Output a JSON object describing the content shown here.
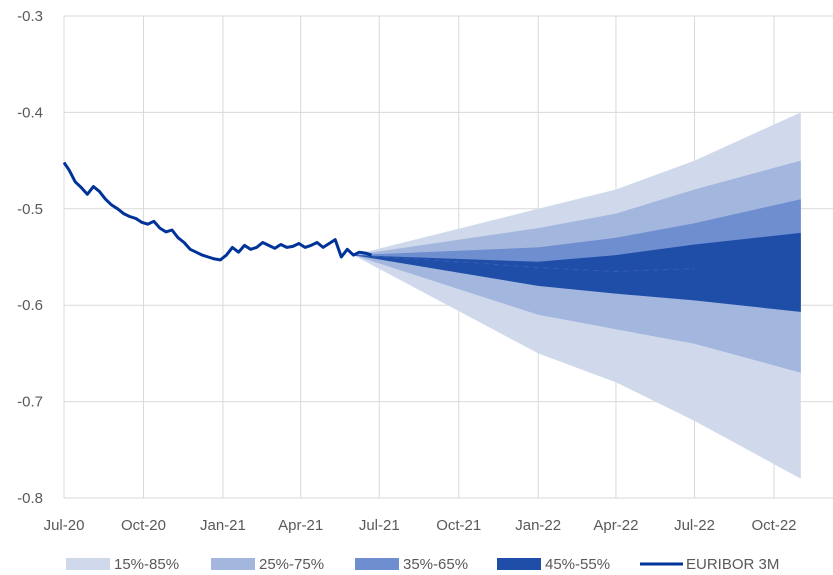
{
  "chart_data": {
    "type": "area",
    "title": "",
    "xlabel": "",
    "ylabel": "",
    "ylim": [
      -0.8,
      -0.3
    ],
    "y_ticks": [
      "-0.3",
      "-0.4",
      "-0.5",
      "-0.6",
      "-0.7",
      "-0.8"
    ],
    "x_ticks": [
      "Jul-20",
      "Oct-20",
      "Jan-21",
      "Apr-21",
      "Jul-21",
      "Oct-21",
      "Jan-22",
      "Apr-22",
      "Jul-22",
      "Oct-22"
    ],
    "grid": true,
    "legend_position": "bottom",
    "fan": {
      "start_date": "Jun-21",
      "start_value": -0.548,
      "bands": [
        {
          "name": "15%-85%",
          "color": "#d0d9ec",
          "dates": [
            "Jun-21",
            "Jan-22",
            "Apr-22",
            "Jul-22",
            "Nov-22"
          ],
          "lower": [
            -0.548,
            -0.65,
            -0.68,
            -0.72,
            -0.78
          ],
          "upper": [
            -0.548,
            -0.5,
            -0.48,
            -0.45,
            -0.4
          ]
        },
        {
          "name": "25%-75%",
          "color": "#a3b6de",
          "dates": [
            "Jun-21",
            "Jan-22",
            "Apr-22",
            "Jul-22",
            "Nov-22"
          ],
          "lower": [
            -0.548,
            -0.61,
            -0.625,
            -0.64,
            -0.67
          ],
          "upper": [
            -0.548,
            -0.52,
            -0.505,
            -0.48,
            -0.45
          ]
        },
        {
          "name": "35%-65%",
          "color": "#6e8ed0",
          "dates": [
            "Jun-21",
            "Jan-22",
            "Apr-22",
            "Jul-22",
            "Nov-22"
          ],
          "lower": [
            -0.548,
            -0.58,
            -0.588,
            -0.595,
            -0.607
          ],
          "upper": [
            -0.548,
            -0.54,
            -0.53,
            -0.515,
            -0.49
          ]
        },
        {
          "name": "45%-55%",
          "color": "#1f4ea8",
          "dates": [
            "Jun-21",
            "Jan-22",
            "Apr-22",
            "Jul-22",
            "Nov-22"
          ],
          "lower": [
            -0.548,
            -0.58,
            -0.588,
            -0.595,
            -0.607
          ],
          "upper": [
            -0.548,
            -0.555,
            -0.548,
            -0.537,
            -0.525
          ]
        }
      ],
      "median": {
        "dates": [
          "Jun-21",
          "Oct-21",
          "Jan-22",
          "Apr-22",
          "Jul-22"
        ],
        "values": [
          -0.548,
          -0.555,
          -0.561,
          -0.565,
          -0.562
        ]
      }
    },
    "series": [
      {
        "name": "EURIBOR 3M",
        "color": "#003399",
        "dates": [
          "2020-07-01",
          "2020-07-07",
          "2020-07-14",
          "2020-07-21",
          "2020-07-28",
          "2020-08-04",
          "2020-08-11",
          "2020-08-18",
          "2020-08-25",
          "2020-09-01",
          "2020-09-08",
          "2020-09-15",
          "2020-09-22",
          "2020-09-29",
          "2020-10-06",
          "2020-10-13",
          "2020-10-20",
          "2020-10-27",
          "2020-11-03",
          "2020-11-10",
          "2020-11-17",
          "2020-11-24",
          "2020-12-01",
          "2020-12-08",
          "2020-12-15",
          "2020-12-22",
          "2020-12-29",
          "2021-01-05",
          "2021-01-12",
          "2021-01-19",
          "2021-01-26",
          "2021-02-02",
          "2021-02-09",
          "2021-02-16",
          "2021-02-23",
          "2021-03-02",
          "2021-03-09",
          "2021-03-16",
          "2021-03-23",
          "2021-03-30",
          "2021-04-06",
          "2021-04-13",
          "2021-04-20",
          "2021-04-27",
          "2021-05-04",
          "2021-05-11",
          "2021-05-18",
          "2021-05-25",
          "2021-06-01",
          "2021-06-08",
          "2021-06-15",
          "2021-06-22"
        ],
        "values": [
          -0.452,
          -0.46,
          -0.472,
          -0.478,
          -0.485,
          -0.477,
          -0.482,
          -0.49,
          -0.496,
          -0.5,
          -0.505,
          -0.508,
          -0.51,
          -0.514,
          -0.516,
          -0.513,
          -0.52,
          -0.524,
          -0.522,
          -0.53,
          -0.535,
          -0.542,
          -0.545,
          -0.548,
          -0.55,
          -0.552,
          -0.553,
          -0.548,
          -0.54,
          -0.545,
          -0.538,
          -0.542,
          -0.54,
          -0.535,
          -0.538,
          -0.541,
          -0.537,
          -0.54,
          -0.539,
          -0.536,
          -0.54,
          -0.538,
          -0.535,
          -0.54,
          -0.536,
          -0.532,
          -0.55,
          -0.542,
          -0.548,
          -0.545,
          -0.546,
          -0.548
        ]
      }
    ]
  }
}
